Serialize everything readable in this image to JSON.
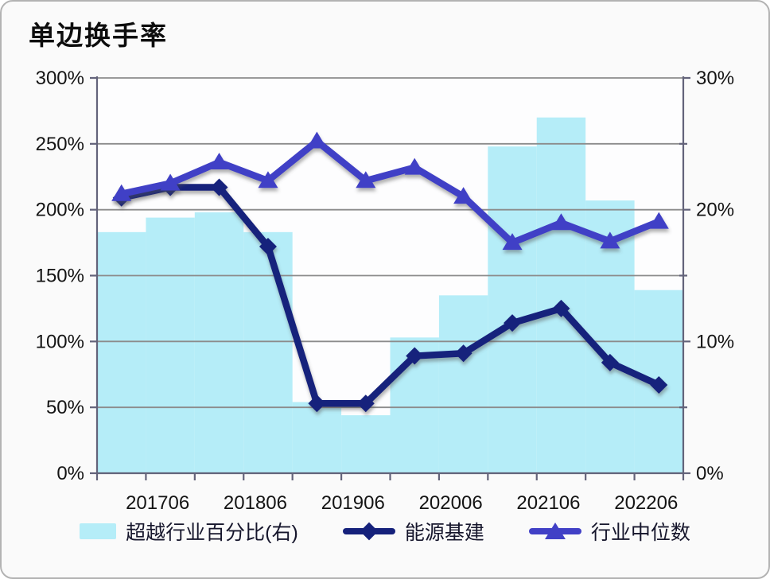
{
  "title": "单边换手率",
  "legend": [
    {
      "label": "超越行业百分比(右)",
      "marker": "bar-swatch",
      "color": "#b5edf8"
    },
    {
      "label": "能源基建",
      "marker": "diamond-line",
      "color": "#15217b"
    },
    {
      "label": "行业中位数",
      "marker": "triangle-line",
      "color": "#4140c6"
    }
  ],
  "chart_data": {
    "type": "combo",
    "title": "单边换手率",
    "x_tick_labels": [
      "201706",
      "201806",
      "201906",
      "202006",
      "202106",
      "202206"
    ],
    "x_points": 12,
    "labeled_point_indices": [
      1,
      3,
      5,
      7,
      9,
      11
    ],
    "series": [
      {
        "name": "超越行业百分比(右)",
        "type": "bar",
        "axis": "right",
        "color": "#b5edf8",
        "values": [
          18.3,
          19.4,
          19.8,
          18.3,
          5.4,
          4.4,
          10.3,
          13.5,
          24.8,
          27.0,
          20.7,
          13.9
        ]
      },
      {
        "name": "能源基建",
        "type": "line",
        "marker": "diamond",
        "axis": "left",
        "color": "#15217b",
        "values": [
          209,
          217,
          217,
          172,
          53,
          53,
          89,
          91,
          114,
          125,
          84,
          67
        ]
      },
      {
        "name": "行业中位数",
        "type": "line",
        "marker": "triangle",
        "axis": "left",
        "color": "#4140c6",
        "values": [
          212,
          220,
          236,
          222,
          252,
          222,
          232,
          210,
          175,
          190,
          176,
          191
        ]
      }
    ],
    "left_axis": {
      "min": 0,
      "max": 300,
      "tick_step": 50,
      "tick_labels": [
        "0%",
        "50%",
        "100%",
        "150%",
        "200%",
        "250%",
        "300%"
      ]
    },
    "right_axis": {
      "min": 0,
      "max": 30,
      "tick_step": 10,
      "minor_tick_step": 5,
      "tick_labels": [
        "0%",
        "10%",
        "20%",
        "30%"
      ]
    },
    "grid": true,
    "legend_position": "bottom",
    "colors": {
      "grid": "#8c8c8c",
      "axis": "#63637a",
      "tick_text": "#141414",
      "plot_bg": "#fdfdfe"
    }
  }
}
